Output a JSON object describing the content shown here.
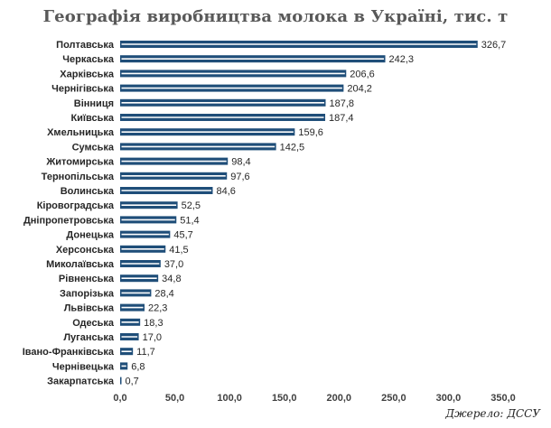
{
  "title": "Географія виробництва молока в Україні, тис. т",
  "source": "Джерело: ДССУ",
  "colors": {
    "bar_fill": "#1f4e79",
    "bar_inner_line": "#ffffff",
    "text": "#262626",
    "title": "#595959"
  },
  "chart_data": {
    "type": "bar",
    "orientation": "horizontal",
    "title": "Географія виробництва молока в Україні, тис. т",
    "xlabel": "",
    "ylabel": "",
    "xlim": [
      0,
      350
    ],
    "grid": false,
    "legend": "none",
    "categories": [
      "Полтавська",
      "Черкаська",
      "Харківська",
      "Чернігівська",
      "Вінниця",
      "Київська",
      "Хмельницька",
      "Сумська",
      "Житомирська",
      "Тернопільська",
      "Волинська",
      "Кіровоградська",
      "Дніпропетровська",
      "Донецька",
      "Херсонська",
      "Миколаївська",
      "Рівненська",
      "Запорізька",
      "Львівська",
      "Одеська",
      "Луганська",
      "Івано-Франківська",
      "Чернівецька",
      "Закарпатська"
    ],
    "values": [
      326.7,
      242.3,
      206.6,
      204.2,
      187.8,
      187.4,
      159.6,
      142.5,
      98.4,
      97.6,
      84.6,
      52.5,
      51.4,
      45.7,
      41.5,
      37.0,
      34.8,
      28.4,
      22.3,
      18.3,
      17.0,
      11.7,
      6.8,
      0.7
    ],
    "value_labels": [
      "326,7",
      "242,3",
      "206,6",
      "204,2",
      "187,8",
      "187,4",
      "159,6",
      "142,5",
      "98,4",
      "97,6",
      "84,6",
      "52,5",
      "51,4",
      "45,7",
      "41,5",
      "37,0",
      "34,8",
      "28,4",
      "22,3",
      "18,3",
      "17,0",
      "11,7",
      "6,8",
      "0,7"
    ],
    "x_ticks": [
      0,
      50,
      100,
      150,
      200,
      250,
      300,
      350
    ],
    "x_tick_labels": [
      "0,0",
      "50,0",
      "100,0",
      "150,0",
      "200,0",
      "250,0",
      "300,0",
      "350,0"
    ]
  }
}
